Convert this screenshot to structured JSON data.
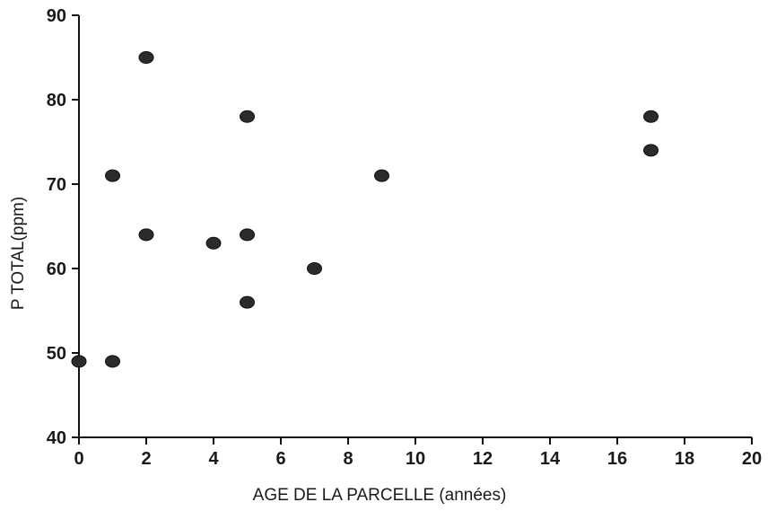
{
  "chart_data": {
    "type": "scatter",
    "title": "",
    "xlabel": "AGE DE LA PARCELLE (années)",
    "ylabel": "P TOTAL(ppm)",
    "xlim": [
      0,
      20
    ],
    "ylim": [
      40,
      90
    ],
    "x_ticks": [
      "0",
      "2",
      "4",
      "6",
      "8",
      "10",
      "12",
      "14",
      "16",
      "18",
      "20"
    ],
    "y_ticks": [
      "40",
      "50",
      "60",
      "70",
      "80",
      "90"
    ],
    "grid": false,
    "legend": "none",
    "marker_color": "#2b2b2b",
    "series": [
      {
        "points": [
          {
            "x": 0,
            "y": 49
          },
          {
            "x": 1,
            "y": 49
          },
          {
            "x": 1,
            "y": 71
          },
          {
            "x": 2,
            "y": 64
          },
          {
            "x": 2,
            "y": 85
          },
          {
            "x": 4,
            "y": 63
          },
          {
            "x": 5,
            "y": 56
          },
          {
            "x": 5,
            "y": 64
          },
          {
            "x": 5,
            "y": 78
          },
          {
            "x": 7,
            "y": 60
          },
          {
            "x": 9,
            "y": 71
          },
          {
            "x": 17,
            "y": 74
          },
          {
            "x": 17,
            "y": 78
          }
        ]
      }
    ]
  }
}
